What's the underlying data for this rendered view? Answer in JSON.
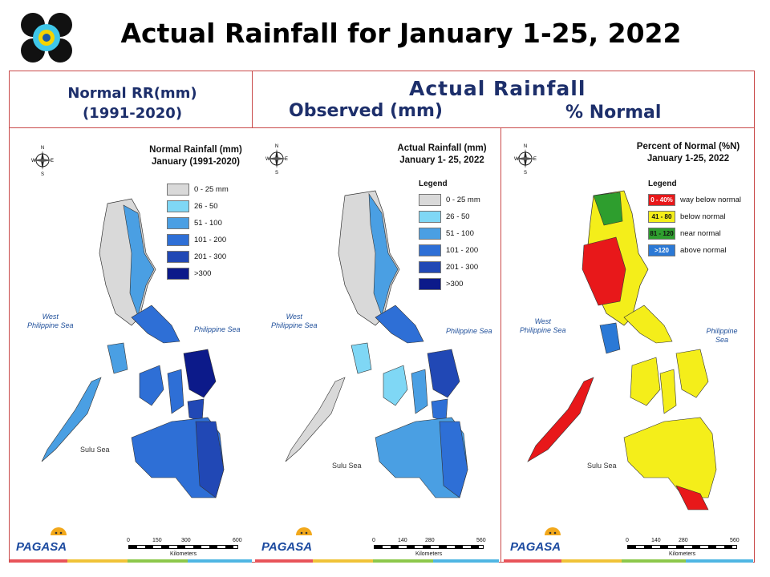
{
  "slide": {
    "title": "Actual Rainfall for January 1-25, 2022",
    "header_normal_line1": "Normal RR(mm)",
    "header_normal_line2": "(1991-2020)",
    "header_actual": "Actual Rainfall",
    "header_observed": "Observed (mm)",
    "header_percent": "% Normal"
  },
  "colors": {
    "c0": "#d9d9d9",
    "c1": "#7fd7f5",
    "c2": "#4a9fe3",
    "c3": "#2e6fd6",
    "c4": "#2148b5",
    "c5": "#0c1a8a",
    "p_red": "#e8181a",
    "p_yellow": "#f4ee1a",
    "p_green": "#2e9e2e",
    "p_blue": "#2b79d6",
    "frame": "#c94a4a",
    "header_text": "#1d2f6b"
  },
  "panels": [
    {
      "title_line1": "Normal Rainfall (mm)",
      "title_line2": "January (1991-2020)",
      "legend_title": "",
      "legend": [
        {
          "label": "0 - 25 mm",
          "color": "#d9d9d9"
        },
        {
          "label": "26 - 50",
          "color": "#7fd7f5"
        },
        {
          "label": "51 - 100",
          "color": "#4a9fe3"
        },
        {
          "label": "101 - 200",
          "color": "#2e6fd6"
        },
        {
          "label": "201 - 300",
          "color": "#2148b5"
        },
        {
          "label": ">300",
          "color": "#0c1a8a"
        }
      ],
      "sea_west_line1": "West",
      "sea_west_line2": "Philippine Sea",
      "sea_east": "Philippine Sea",
      "sea_sulu": "Sulu Sea",
      "scale_labels": [
        "0",
        "150",
        "300",
        "600"
      ],
      "scale_unit": "Kilometers",
      "compass": [
        "N",
        "E",
        "S",
        "W"
      ]
    },
    {
      "title_line1": "Actual Rainfall (mm)",
      "title_line2": "January 1- 25, 2022",
      "legend_title": "Legend",
      "legend": [
        {
          "label": "0 - 25 mm",
          "color": "#d9d9d9"
        },
        {
          "label": "26 - 50",
          "color": "#7fd7f5"
        },
        {
          "label": "51 - 100",
          "color": "#4a9fe3"
        },
        {
          "label": "101 - 200",
          "color": "#2e6fd6"
        },
        {
          "label": "201 - 300",
          "color": "#2148b5"
        },
        {
          "label": ">300",
          "color": "#0c1a8a"
        }
      ],
      "sea_west_line1": "West",
      "sea_west_line2": "Philippine Sea",
      "sea_east": "Philippine Sea",
      "sea_sulu": "Sulu Sea",
      "scale_labels": [
        "0",
        "140",
        "280",
        "560"
      ],
      "scale_unit": "Kilometers",
      "compass": [
        "N",
        "E",
        "S",
        "W"
      ]
    },
    {
      "title_line1": "Percent of Normal (%N)",
      "title_line2": "January 1-25, 2022",
      "legend_title": "Legend",
      "legend": [
        {
          "swatch": "0 - 40%",
          "label": "way below normal",
          "color": "#e8181a"
        },
        {
          "swatch": "41 - 80",
          "label": "below normal",
          "color": "#f4ee1a"
        },
        {
          "swatch": "81 - 120",
          "label": "near normal",
          "color": "#2e9e2e"
        },
        {
          "swatch": ">120",
          "label": "above normal",
          "color": "#2b79d6"
        }
      ],
      "sea_west_line1": "West",
      "sea_west_line2": "Philippine Sea",
      "sea_east": "Philippine Sea",
      "sea_sulu": "Sulu Sea",
      "scale_labels": [
        "0",
        "140",
        "280",
        "560"
      ],
      "scale_unit": "Kilometers",
      "compass": [
        "N",
        "E",
        "S",
        "W"
      ]
    }
  ],
  "branding": {
    "name": "PAGASA"
  }
}
